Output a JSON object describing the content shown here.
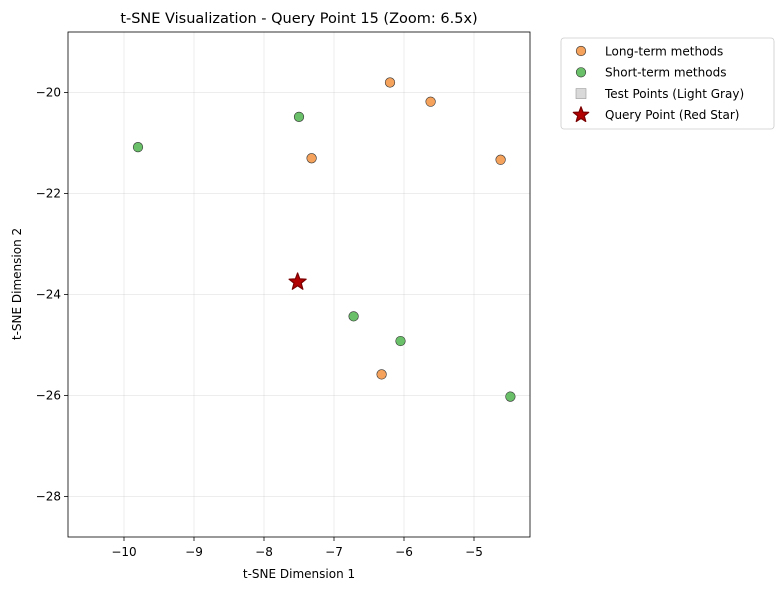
{
  "chart_data": {
    "type": "scatter",
    "title": "t-SNE Visualization - Query Point 15 (Zoom: 6.5x)",
    "xlabel": "t-SNE Dimension 1",
    "ylabel": "t-SNE Dimension 2",
    "xlim": [
      -10.8,
      -4.2
    ],
    "ylim": [
      -28.8,
      -18.8
    ],
    "xticks": [
      -10,
      -9,
      -8,
      -7,
      -6,
      -5
    ],
    "yticks": [
      -28,
      -26,
      -24,
      -22,
      -20
    ],
    "grid": true,
    "legend_position": "outside upper-right",
    "series": [
      {
        "name": "Long-term methods",
        "color": "#f5a25d",
        "marker": "circle",
        "points": [
          {
            "x": -6.2,
            "y": -19.8
          },
          {
            "x": -5.62,
            "y": -20.18
          },
          {
            "x": -7.32,
            "y": -21.3
          },
          {
            "x": -4.62,
            "y": -21.33
          },
          {
            "x": -6.32,
            "y": -25.58
          }
        ]
      },
      {
        "name": "Short-term methods",
        "color": "#6abf69",
        "marker": "circle",
        "points": [
          {
            "x": -7.5,
            "y": -20.48
          },
          {
            "x": -9.8,
            "y": -21.08
          },
          {
            "x": -6.72,
            "y": -24.43
          },
          {
            "x": -6.05,
            "y": -24.92
          },
          {
            "x": -4.48,
            "y": -26.02
          }
        ]
      },
      {
        "name": "Test Points (Light Gray)",
        "color": "#d9d9d9",
        "marker": "square",
        "points": []
      },
      {
        "name": "Query Point (Red Star)",
        "color": "#b30000",
        "marker": "star",
        "points": [
          {
            "x": -7.52,
            "y": -23.75
          }
        ]
      }
    ]
  }
}
